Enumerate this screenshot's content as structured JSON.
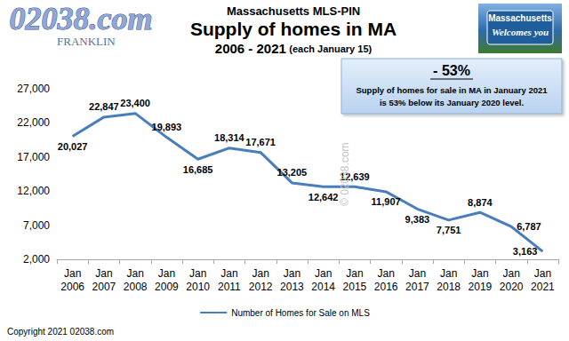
{
  "chart_data": {
    "type": "line",
    "title": "Supply of homes in MA",
    "subtitle": "Massachusetts MLS-PIN",
    "annotations": {
      "period": "2006 - 2021",
      "period_note": "(each January 15)",
      "logo": "02038.com",
      "logo_sub": "FRANKLIN",
      "sign": [
        "Massachusetts",
        "Welcomes you"
      ],
      "callout_title": "- 53%",
      "callout_text": [
        "Supply of homes for sale in MA in January 2021",
        "is 53% below its January 2020 level."
      ],
      "watermark": "© 02038.com",
      "copyright": "Copyright 2021 02038.com"
    },
    "categories": [
      "Jan 2006",
      "Jan 2007",
      "Jan 2008",
      "Jan 2009",
      "Jan 2010",
      "Jan 2011",
      "Jan 2012",
      "Jan 2013",
      "Jan 2014",
      "Jan 2015",
      "Jan 2016",
      "Jan 2017",
      "Jan 2018",
      "Jan 2019",
      "Jan 2020",
      "Jan 2021"
    ],
    "series": [
      {
        "name": "Number of Homes for Sale on MLS",
        "color": "#4a7ebb",
        "values": [
          20027,
          22847,
          23400,
          19893,
          16685,
          18314,
          17671,
          13205,
          12642,
          12639,
          11907,
          9383,
          7751,
          8874,
          6787,
          3163
        ],
        "value_labels": [
          "20,027",
          "22,847",
          "23,400",
          "19,893",
          "16,685",
          "18,314",
          "17,671",
          "13,205",
          "12,642",
          "12,639",
          "11,907",
          "9,383",
          "7,751",
          "8,874",
          "6,787",
          "3,163"
        ]
      }
    ],
    "ylim": [
      2000,
      27000
    ],
    "yticks": [
      {
        "value": 2000,
        "label": "2,000"
      },
      {
        "value": 7000,
        "label": "7,000"
      },
      {
        "value": 12000,
        "label": "12,000"
      },
      {
        "value": 17000,
        "label": "17,000"
      },
      {
        "value": 22000,
        "label": "22,000"
      },
      {
        "value": 27000,
        "label": "27,000"
      }
    ],
    "grid": false,
    "legend": "bottom",
    "data_labels": true
  }
}
